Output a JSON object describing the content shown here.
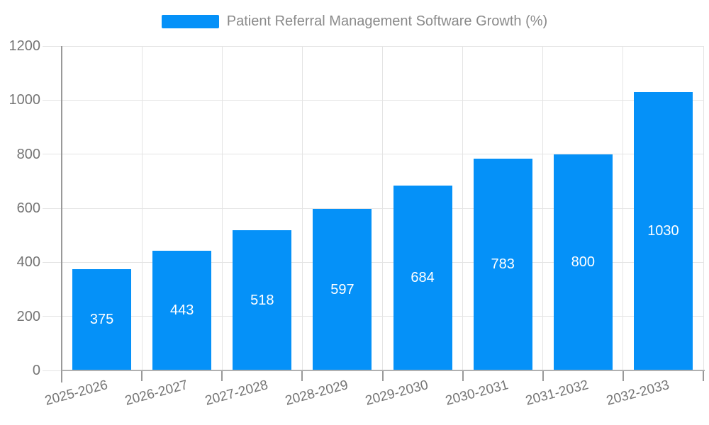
{
  "legend": {
    "label": "Patient Referral Management Software Growth (%)"
  },
  "chart_data": {
    "type": "bar",
    "title": "Patient Referral Management Software Growth (%)",
    "categories": [
      "2025-2026",
      "2026-2027",
      "2027-2028",
      "2028-2029",
      "2029-2030",
      "2030-2031",
      "2031-2032",
      "2032-2033"
    ],
    "values": [
      375,
      443,
      518,
      597,
      684,
      783,
      800,
      1030
    ],
    "series": [
      {
        "name": "Patient Referral Management Software Growth (%)",
        "values": [
          375,
          443,
          518,
          597,
          684,
          783,
          800,
          1030
        ]
      }
    ],
    "xlabel": "",
    "ylabel": "",
    "ylim": [
      0,
      1200
    ],
    "yticks": [
      0,
      200,
      400,
      600,
      800,
      1000,
      1200
    ],
    "grid": true,
    "legend_position": "top-center",
    "x_label_rotation_deg": -15,
    "colors": {
      "bar": "#0591f8",
      "value_label": "#ffffff",
      "axis_label": "#757575",
      "legend_text": "#8a8a8a",
      "grid_line": "#e4e4e4",
      "axis_line": "#999999",
      "axis_line_x": "#b0b0b0",
      "background": "#ffffff"
    }
  }
}
